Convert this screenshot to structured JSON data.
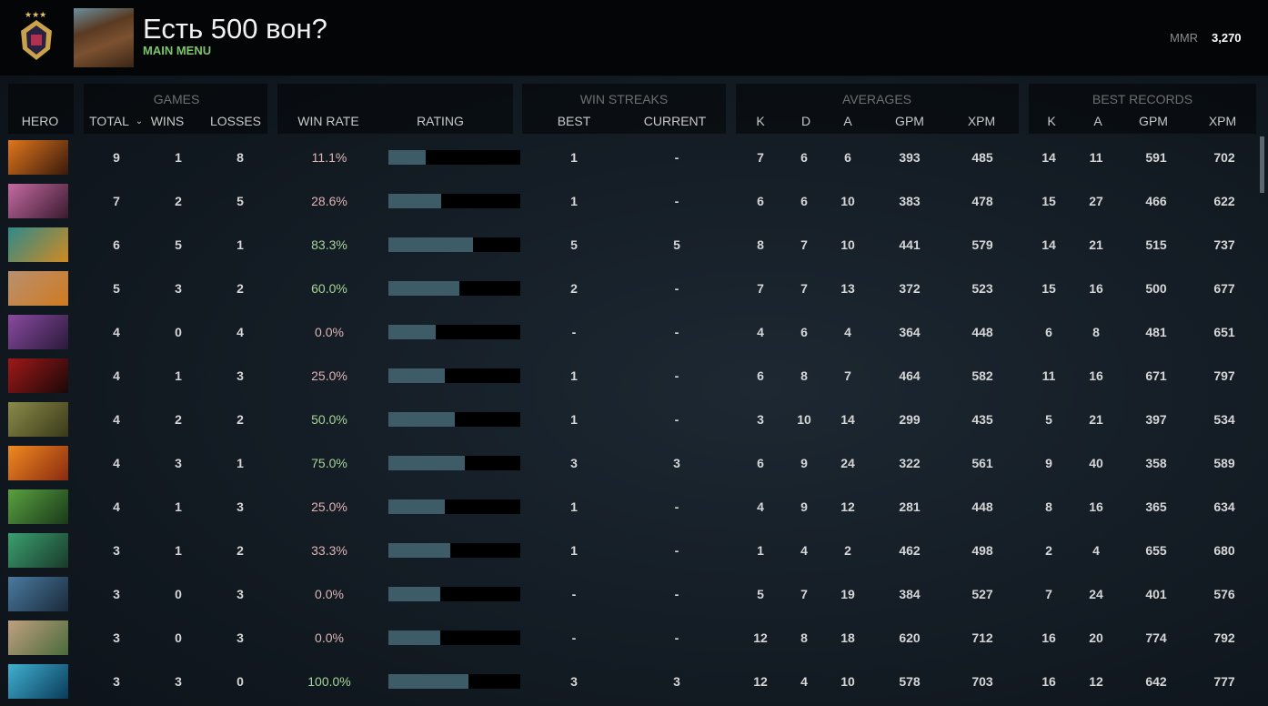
{
  "header": {
    "player_name": "Есть 500 вон?",
    "subtitle": "MAIN MENU",
    "mmr_label": "MMR",
    "mmr_value": "3,270"
  },
  "groups": {
    "games": "GAMES",
    "win_streaks": "WIN STREAKS",
    "averages": "AVERAGES",
    "best_records": "BEST RECORDS"
  },
  "columns": {
    "hero": "HERO",
    "total": "TOTAL",
    "wins": "WINS",
    "losses": "LOSSES",
    "win_rate": "WIN RATE",
    "rating": "RATING",
    "best": "BEST",
    "current": "CURRENT",
    "avg_k": "K",
    "avg_d": "D",
    "avg_a": "A",
    "avg_gpm": "GPM",
    "avg_xpm": "XPM",
    "best_k": "K",
    "best_a": "A",
    "best_gpm": "GPM",
    "best_xpm": "XPM"
  },
  "sort": {
    "column": "total",
    "direction": "descending"
  },
  "colors": {
    "win_rate_low": "#e0b4b4",
    "win_rate_high": "#a8d49a",
    "rating_fill": "#3e5c68",
    "accent": "#7bc56a"
  },
  "rows": [
    {
      "hero_colors": [
        "#e0761c",
        "#3a1a0c"
      ],
      "total": "9",
      "wins": "1",
      "losses": "8",
      "win_rate": "11.1%",
      "rating": 0.28,
      "best": "1",
      "current": "-",
      "k": "7",
      "d": "6",
      "a": "6",
      "gpm": "393",
      "xpm": "485",
      "bk": "14",
      "ba": "11",
      "bgpm": "591",
      "bxpm": "702"
    },
    {
      "hero_colors": [
        "#c46aa0",
        "#3a1a30"
      ],
      "total": "7",
      "wins": "2",
      "losses": "5",
      "win_rate": "28.6%",
      "rating": 0.4,
      "best": "1",
      "current": "-",
      "k": "6",
      "d": "6",
      "a": "10",
      "gpm": "383",
      "xpm": "478",
      "bk": "15",
      "ba": "27",
      "bgpm": "466",
      "bxpm": "622"
    },
    {
      "hero_colors": [
        "#2e8a8a",
        "#d08a20"
      ],
      "total": "6",
      "wins": "5",
      "losses": "1",
      "win_rate": "83.3%",
      "rating": 0.64,
      "best": "5",
      "current": "5",
      "k": "8",
      "d": "7",
      "a": "10",
      "gpm": "441",
      "xpm": "579",
      "bk": "14",
      "ba": "21",
      "bgpm": "515",
      "bxpm": "737"
    },
    {
      "hero_colors": [
        "#b89070",
        "#d07a20"
      ],
      "total": "5",
      "wins": "3",
      "losses": "2",
      "win_rate": "60.0%",
      "rating": 0.54,
      "best": "2",
      "current": "-",
      "k": "7",
      "d": "7",
      "a": "13",
      "gpm": "372",
      "xpm": "523",
      "bk": "15",
      "ba": "16",
      "bgpm": "500",
      "bxpm": "677"
    },
    {
      "hero_colors": [
        "#8a4aa0",
        "#2a1a3a"
      ],
      "total": "4",
      "wins": "0",
      "losses": "4",
      "win_rate": "0.0%",
      "rating": 0.36,
      "best": "-",
      "current": "-",
      "k": "4",
      "d": "6",
      "a": "4",
      "gpm": "364",
      "xpm": "448",
      "bk": "6",
      "ba": "8",
      "bgpm": "481",
      "bxpm": "651"
    },
    {
      "hero_colors": [
        "#a01818",
        "#1a0808"
      ],
      "total": "4",
      "wins": "1",
      "losses": "3",
      "win_rate": "25.0%",
      "rating": 0.43,
      "best": "1",
      "current": "-",
      "k": "6",
      "d": "8",
      "a": "7",
      "gpm": "464",
      "xpm": "582",
      "bk": "11",
      "ba": "16",
      "bgpm": "671",
      "bxpm": "797"
    },
    {
      "hero_colors": [
        "#8a8a4a",
        "#3a3a1a"
      ],
      "total": "4",
      "wins": "2",
      "losses": "2",
      "win_rate": "50.0%",
      "rating": 0.5,
      "best": "1",
      "current": "-",
      "k": "3",
      "d": "10",
      "a": "14",
      "gpm": "299",
      "xpm": "435",
      "bk": "5",
      "ba": "21",
      "bgpm": "397",
      "bxpm": "534"
    },
    {
      "hero_colors": [
        "#f08a20",
        "#8a2a10"
      ],
      "total": "4",
      "wins": "3",
      "losses": "1",
      "win_rate": "75.0%",
      "rating": 0.58,
      "best": "3",
      "current": "3",
      "k": "6",
      "d": "9",
      "a": "24",
      "gpm": "322",
      "xpm": "561",
      "bk": "9",
      "ba": "40",
      "bgpm": "358",
      "bxpm": "589"
    },
    {
      "hero_colors": [
        "#5aa040",
        "#1a3a1a"
      ],
      "total": "4",
      "wins": "1",
      "losses": "3",
      "win_rate": "25.0%",
      "rating": 0.43,
      "best": "1",
      "current": "-",
      "k": "4",
      "d": "9",
      "a": "12",
      "gpm": "281",
      "xpm": "448",
      "bk": "8",
      "ba": "16",
      "bgpm": "365",
      "bxpm": "634"
    },
    {
      "hero_colors": [
        "#3aa070",
        "#1a3a2a"
      ],
      "total": "3",
      "wins": "1",
      "losses": "2",
      "win_rate": "33.3%",
      "rating": 0.47,
      "best": "1",
      "current": "-",
      "k": "1",
      "d": "4",
      "a": "2",
      "gpm": "462",
      "xpm": "498",
      "bk": "2",
      "ba": "4",
      "bgpm": "655",
      "bxpm": "680"
    },
    {
      "hero_colors": [
        "#4a7aa0",
        "#1a2a3a"
      ],
      "total": "3",
      "wins": "0",
      "losses": "3",
      "win_rate": "0.0%",
      "rating": 0.39,
      "best": "-",
      "current": "-",
      "k": "5",
      "d": "7",
      "a": "19",
      "gpm": "384",
      "xpm": "527",
      "bk": "7",
      "ba": "24",
      "bgpm": "401",
      "bxpm": "576"
    },
    {
      "hero_colors": [
        "#c0a080",
        "#4a6a3a"
      ],
      "total": "3",
      "wins": "0",
      "losses": "3",
      "win_rate": "0.0%",
      "rating": 0.39,
      "best": "-",
      "current": "-",
      "k": "12",
      "d": "8",
      "a": "18",
      "gpm": "620",
      "xpm": "712",
      "bk": "16",
      "ba": "20",
      "bgpm": "774",
      "bxpm": "792"
    },
    {
      "hero_colors": [
        "#40b0d0",
        "#0a3a5a"
      ],
      "total": "3",
      "wins": "3",
      "losses": "0",
      "win_rate": "100.0%",
      "rating": 0.61,
      "best": "3",
      "current": "3",
      "k": "12",
      "d": "4",
      "a": "10",
      "gpm": "578",
      "xpm": "703",
      "bk": "16",
      "ba": "12",
      "bgpm": "642",
      "bxpm": "777"
    }
  ]
}
